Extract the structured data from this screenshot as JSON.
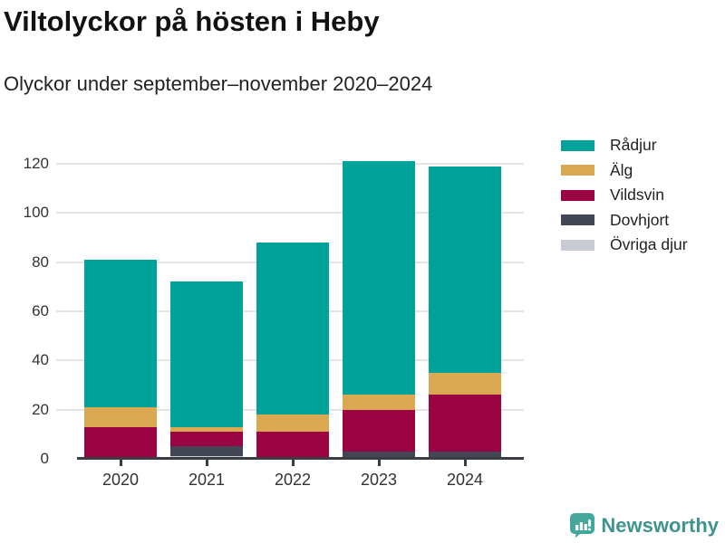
{
  "header": {
    "title": "Viltolyckor på hösten i Heby",
    "subtitle": "Olyckor under september–november 2020–2024"
  },
  "chart_data": {
    "type": "bar",
    "stacked": true,
    "title": "Viltolyckor på hösten i Heby",
    "subtitle": "Olyckor under september–november 2020–2024",
    "categories": [
      "2020",
      "2021",
      "2022",
      "2023",
      "2024"
    ],
    "series": [
      {
        "name": "Rådjur",
        "color": "#00A29A",
        "values": [
          60,
          59,
          70,
          95,
          84
        ]
      },
      {
        "name": "Älg",
        "color": "#D9A850",
        "values": [
          8,
          2,
          7,
          6,
          9
        ]
      },
      {
        "name": "Vildsvin",
        "color": "#9B0342",
        "values": [
          13,
          6,
          11,
          17,
          23
        ]
      },
      {
        "name": "Dovhjort",
        "color": "#424655",
        "values": [
          0,
          4,
          0,
          3,
          3
        ]
      },
      {
        "name": "Övriga djur",
        "color": "#C7CBD4",
        "values": [
          0,
          1,
          0,
          0,
          0
        ]
      }
    ],
    "totals": [
      81,
      72,
      88,
      121,
      119
    ],
    "stack_order_bottom_to_top": [
      "Övriga djur",
      "Dovhjort",
      "Vildsvin",
      "Älg",
      "Rådjur"
    ],
    "xlabel": "",
    "ylabel": "",
    "ylim": [
      0,
      120
    ],
    "yticks": [
      0,
      20,
      40,
      60,
      80,
      100,
      120
    ],
    "grid": true,
    "legend_position": "top-right"
  },
  "colors": {
    "axis": "#3a3e44",
    "grid": "#e4e4e4",
    "tick_text": "#333333",
    "brand_teal": "#3F948E",
    "logo_teal": "#43A79B"
  },
  "footer": {
    "brand": "Newsworthy"
  }
}
